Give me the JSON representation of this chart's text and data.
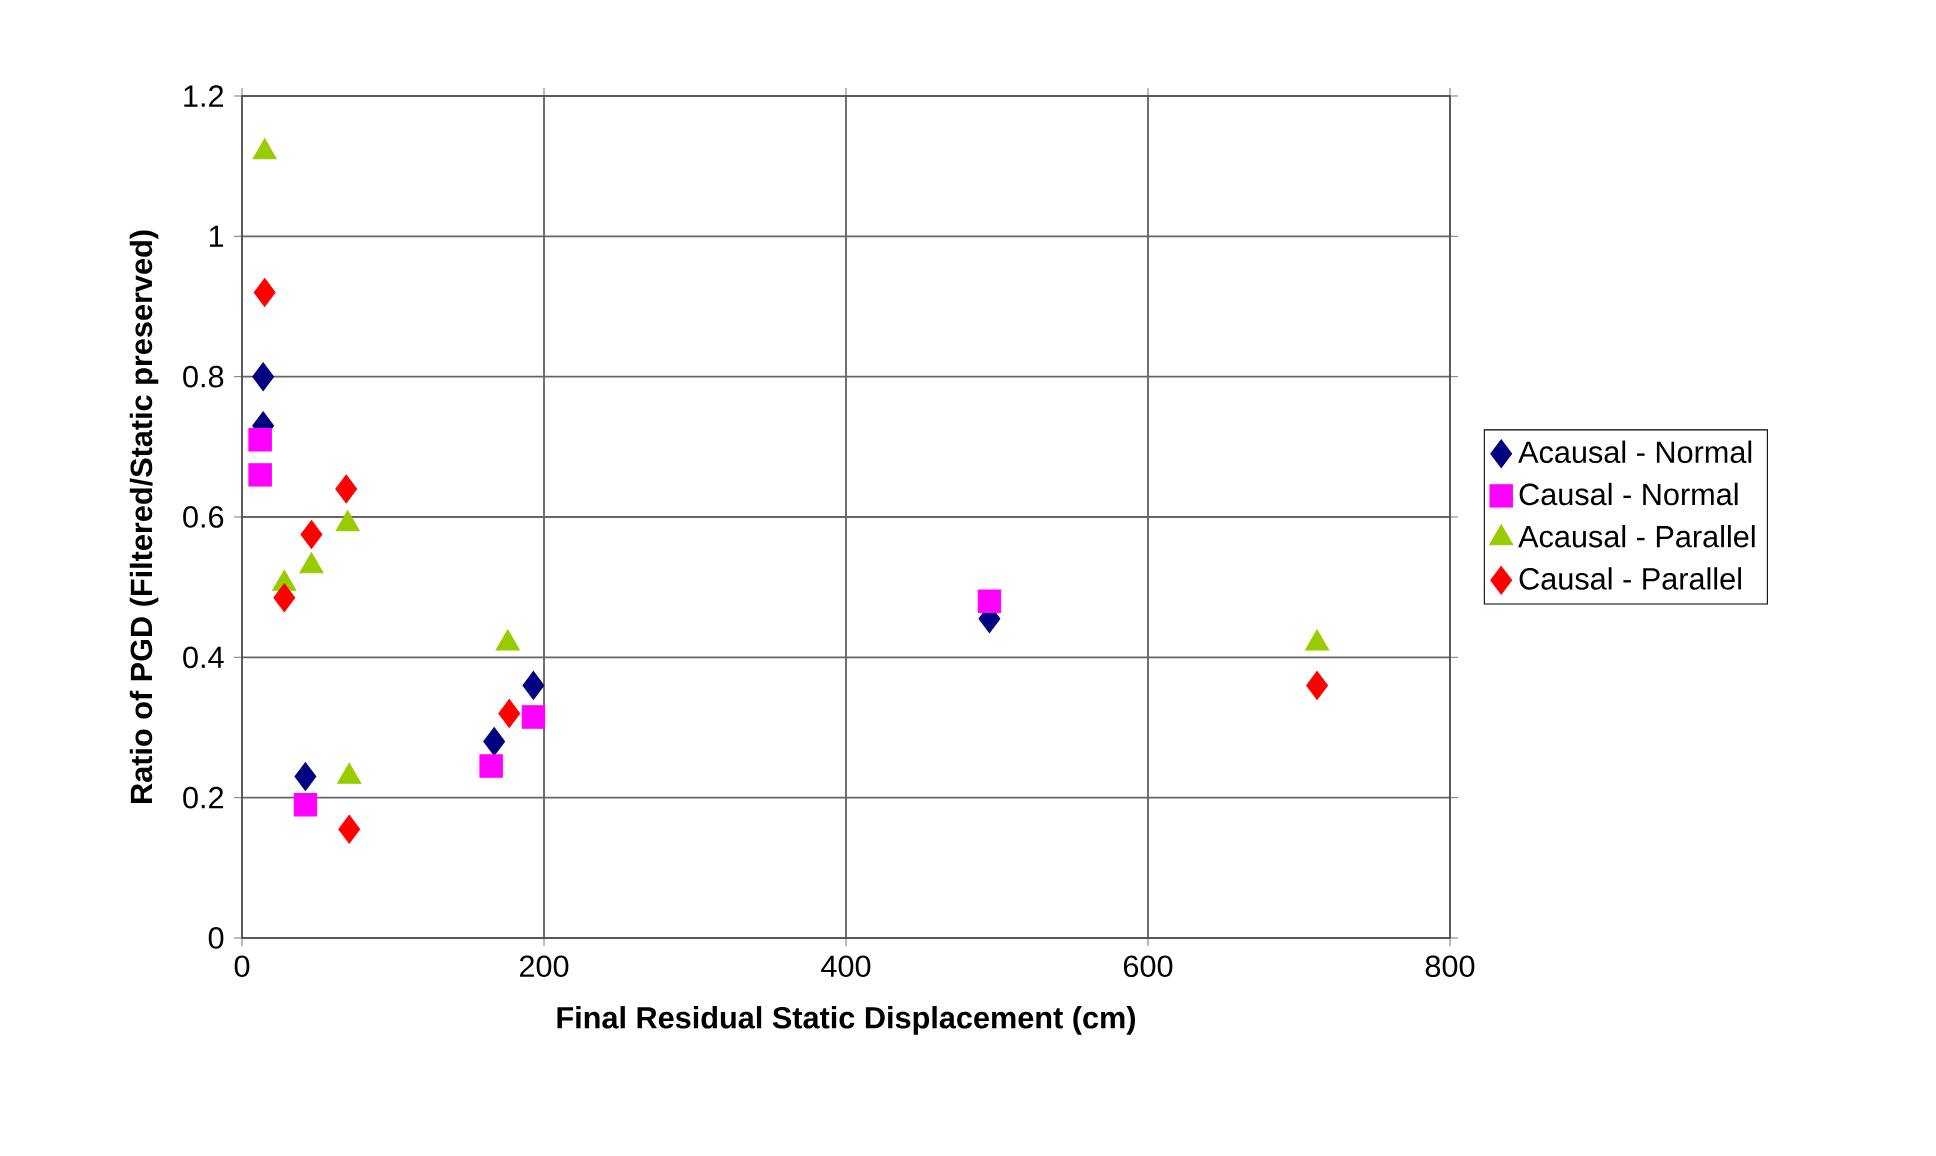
{
  "chart_data": {
    "type": "scatter",
    "xlabel": "Final Residual Static Displacement (cm)",
    "ylabel": "Ratio of PGD (Filtered/Static preserved)",
    "xlim": [
      0,
      800
    ],
    "xticks": [
      0,
      200,
      400,
      600,
      800
    ],
    "ylim": [
      0,
      1.2
    ],
    "yticks": [
      0,
      {
        "value": 0.2,
        "label": "0.2"
      },
      {
        "value": 0.4,
        "label": "0.4"
      },
      {
        "value": 0.6,
        "label": "0.6"
      },
      {
        "value": 0.8,
        "label": "0.8"
      },
      1,
      {
        "value": 1.2,
        "label": "1.2"
      }
    ],
    "grid": true,
    "legend": "right",
    "series": [
      {
        "name": "Acausal - Normal",
        "color": "#000080",
        "marker": "diamond",
        "x": [
          14,
          14,
          42,
          167,
          193,
          495
        ],
        "values": [
          0.8,
          0.73,
          0.23,
          0.28,
          0.36,
          0.455
        ]
      },
      {
        "name": "Causal - Normal",
        "color": "#ff00ff",
        "marker": "square",
        "x": [
          12,
          12,
          42,
          165,
          193,
          495
        ],
        "values": [
          0.71,
          0.66,
          0.19,
          0.245,
          0.315,
          0.48
        ]
      },
      {
        "name": "Acausal - Parallel",
        "color": "#99cc00",
        "marker": "triangle",
        "x": [
          15,
          28,
          46,
          70,
          71,
          176,
          712
        ],
        "values": [
          1.12,
          0.505,
          0.53,
          0.59,
          0.23,
          0.42,
          0.42
        ]
      },
      {
        "name": "Causal - Parallel",
        "color": "#ff0000",
        "marker": "diamond",
        "x": [
          15,
          28,
          46,
          69,
          71,
          177,
          712
        ],
        "values": [
          0.92,
          0.485,
          0.575,
          0.64,
          0.155,
          0.32,
          0.36
        ]
      }
    ]
  }
}
